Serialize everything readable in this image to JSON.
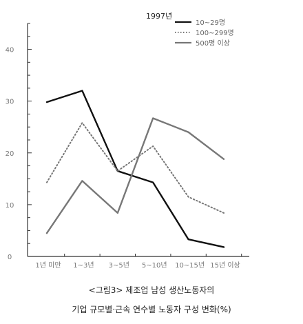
{
  "chart_data": {
    "type": "line",
    "annotation": "1997년",
    "categories": [
      "1년 미만",
      "1~3년",
      "3~5년",
      "5~10년",
      "10~15년",
      "15년 이상"
    ],
    "yticks": [
      0,
      10,
      20,
      30,
      40
    ],
    "ylim": [
      0,
      45
    ],
    "grid": false,
    "legend_position": "top-right",
    "series": [
      {
        "name": "10~29명",
        "values": [
          29.8,
          32.0,
          16.5,
          14.3,
          3.3,
          1.8
        ],
        "color": "#111111",
        "style": "solid"
      },
      {
        "name": "100~299명",
        "values": [
          14.3,
          25.8,
          16.5,
          21.3,
          11.5,
          8.4
        ],
        "color": "#777777",
        "style": "dotted"
      },
      {
        "name": "500명 이상",
        "values": [
          4.5,
          14.6,
          8.4,
          26.7,
          24.0,
          18.8
        ],
        "color": "#777777",
        "style": "solid"
      }
    ]
  },
  "caption": {
    "line1": "<그림3> 제조업 남성 생산노동자의",
    "line2": "기업 규모별·근속 연수별 노동자 구성 변화(%)"
  }
}
